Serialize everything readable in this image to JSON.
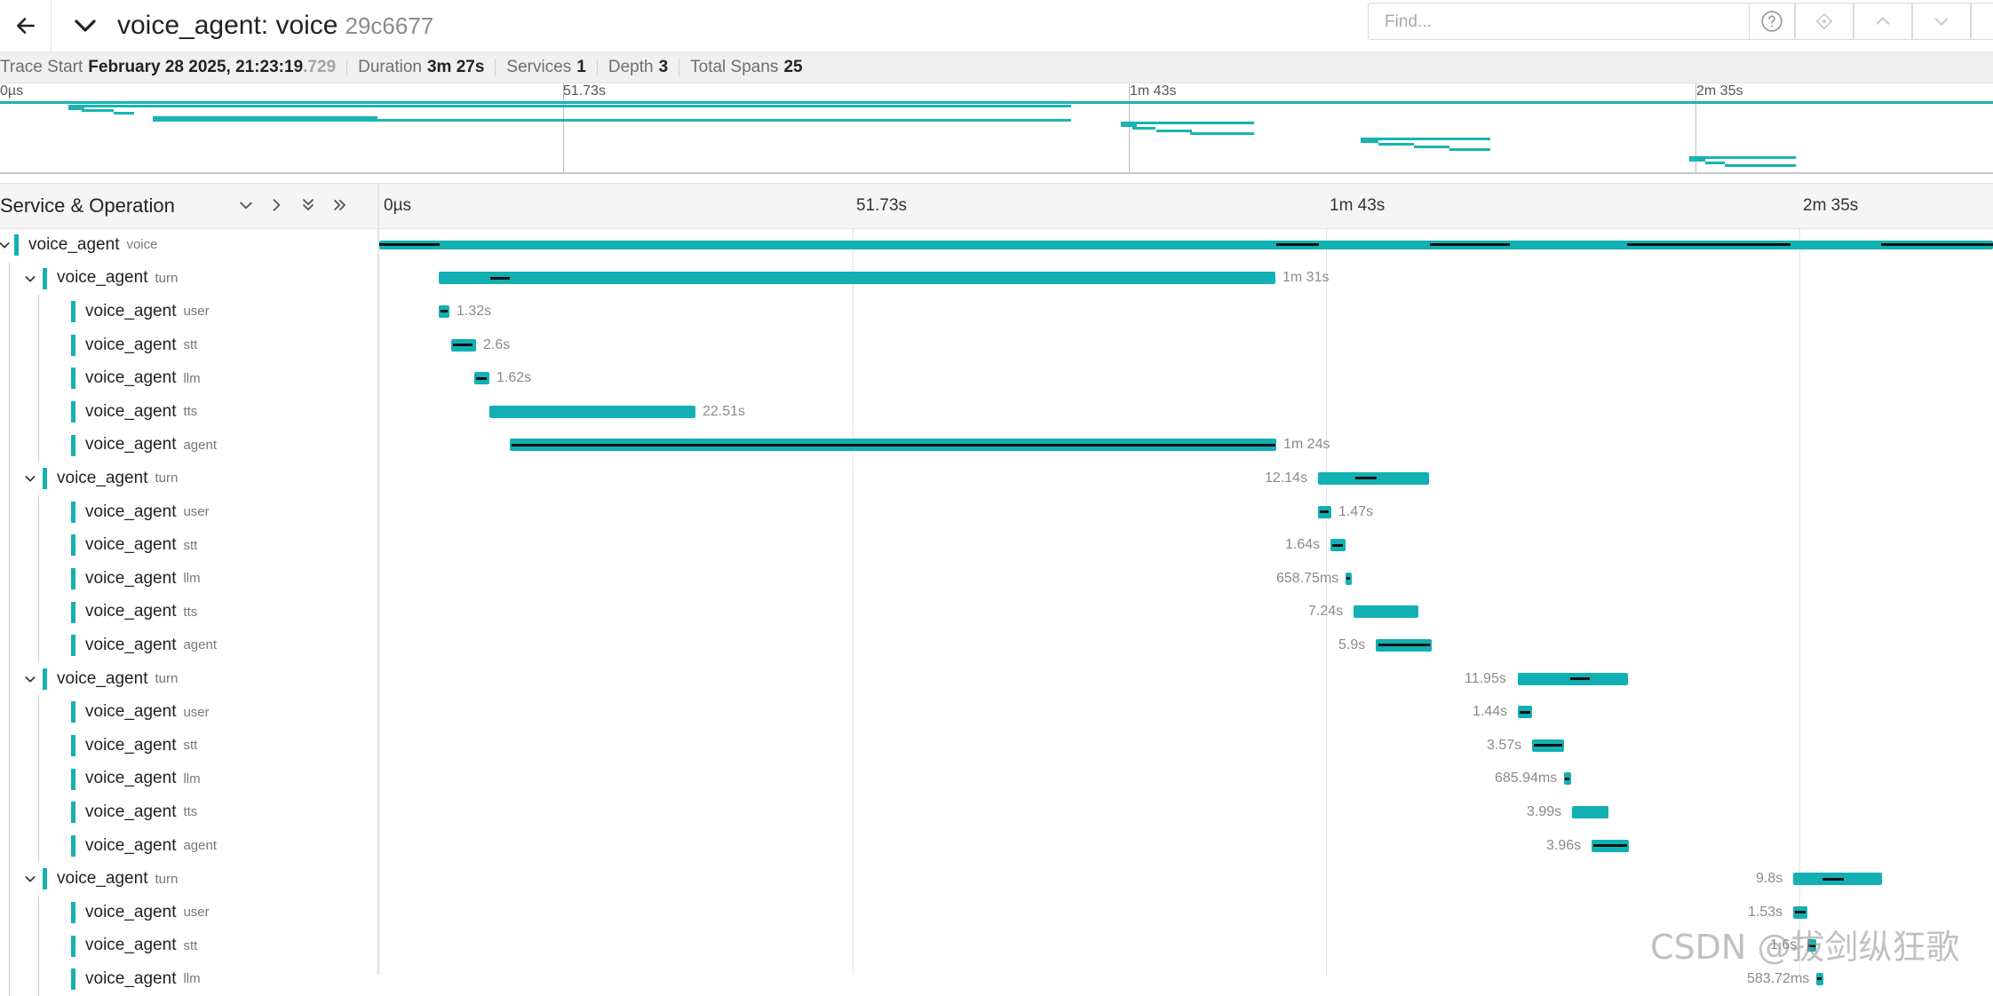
{
  "header": {
    "back_icon": "arrow-left-icon",
    "collapse_icon": "chevron-down-icon",
    "title": "voice_agent: voice",
    "trace_id": "29c6677",
    "find_placeholder": "Find...",
    "help_icon": "question-circle-icon",
    "locate_icon": "locate-icon",
    "prev_icon": "chevron-up-icon",
    "next_icon": "chevron-down-icon"
  },
  "summary": {
    "trace_start_label": "Trace Start",
    "trace_start_value": "February 28 2025, 21:23:19",
    "trace_start_ms": ".729",
    "duration_label": "Duration",
    "duration_value": "3m 27s",
    "services_label": "Services",
    "services_value": "1",
    "depth_label": "Depth",
    "depth_value": "3",
    "total_spans_label": "Total Spans",
    "total_spans_value": "25"
  },
  "minimap": {
    "ticks": [
      "0µs",
      "51.73s",
      "1m 43s",
      "2m 35s"
    ]
  },
  "timeline": {
    "column_title": "Service & Operation",
    "controls": {
      "collapse_one": "chevron-down-icon",
      "expand_one": "chevron-right-icon",
      "expand_all": "double-chevron-down-icon",
      "collapse_all": "double-chevron-right-icon"
    },
    "ticks": [
      "0µs",
      "51.73s",
      "1m 43s",
      "2m 35s"
    ],
    "accent_color": "#12b0b3"
  },
  "spans": [
    {
      "service": "voice_agent",
      "operation": "voice",
      "depth": 0,
      "toggle": true
    },
    {
      "service": "voice_agent",
      "operation": "turn",
      "depth": 1,
      "toggle": true,
      "duration": "1m 31s"
    },
    {
      "service": "voice_agent",
      "operation": "user",
      "depth": 2,
      "toggle": false,
      "duration": "1.32s"
    },
    {
      "service": "voice_agent",
      "operation": "stt",
      "depth": 2,
      "toggle": false,
      "duration": "2.6s"
    },
    {
      "service": "voice_agent",
      "operation": "llm",
      "depth": 2,
      "toggle": false,
      "duration": "1.62s"
    },
    {
      "service": "voice_agent",
      "operation": "tts",
      "depth": 2,
      "toggle": false,
      "duration": "22.51s"
    },
    {
      "service": "voice_agent",
      "operation": "agent",
      "depth": 2,
      "toggle": false,
      "duration": "1m 24s"
    },
    {
      "service": "voice_agent",
      "operation": "turn",
      "depth": 1,
      "toggle": true,
      "duration": "12.14s"
    },
    {
      "service": "voice_agent",
      "operation": "user",
      "depth": 2,
      "toggle": false,
      "duration": "1.47s"
    },
    {
      "service": "voice_agent",
      "operation": "stt",
      "depth": 2,
      "toggle": false,
      "duration": "1.64s"
    },
    {
      "service": "voice_agent",
      "operation": "llm",
      "depth": 2,
      "toggle": false,
      "duration": "658.75ms"
    },
    {
      "service": "voice_agent",
      "operation": "tts",
      "depth": 2,
      "toggle": false,
      "duration": "7.24s"
    },
    {
      "service": "voice_agent",
      "operation": "agent",
      "depth": 2,
      "toggle": false,
      "duration": "5.9s"
    },
    {
      "service": "voice_agent",
      "operation": "turn",
      "depth": 1,
      "toggle": true,
      "duration": "11.95s"
    },
    {
      "service": "voice_agent",
      "operation": "user",
      "depth": 2,
      "toggle": false,
      "duration": "1.44s"
    },
    {
      "service": "voice_agent",
      "operation": "stt",
      "depth": 2,
      "toggle": false,
      "duration": "3.57s"
    },
    {
      "service": "voice_agent",
      "operation": "llm",
      "depth": 2,
      "toggle": false,
      "duration": "685.94ms"
    },
    {
      "service": "voice_agent",
      "operation": "tts",
      "depth": 2,
      "toggle": false,
      "duration": "3.99s"
    },
    {
      "service": "voice_agent",
      "operation": "agent",
      "depth": 2,
      "toggle": false,
      "duration": "3.96s"
    },
    {
      "service": "voice_agent",
      "operation": "turn",
      "depth": 1,
      "toggle": true,
      "duration": "9.8s"
    },
    {
      "service": "voice_agent",
      "operation": "user",
      "depth": 2,
      "toggle": false,
      "duration": "1.53s"
    },
    {
      "service": "voice_agent",
      "operation": "stt",
      "depth": 2,
      "toggle": false,
      "duration": "1.6s"
    },
    {
      "service": "voice_agent",
      "operation": "llm",
      "depth": 2,
      "toggle": false,
      "duration": "583.72ms"
    }
  ],
  "watermark": "CSDN @拔剑纵狂歌"
}
